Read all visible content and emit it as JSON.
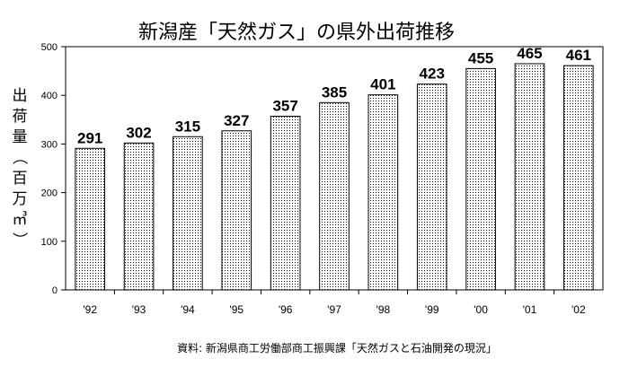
{
  "chart_data": {
    "type": "bar",
    "title": "新潟産「天然ガス」の県外出荷推移",
    "ylabel": "出荷量（百万㎥）",
    "categories": [
      "'92",
      "'93",
      "'94",
      "'95",
      "'96",
      "'97",
      "'98",
      "'99",
      "'00",
      "'01",
      "'02"
    ],
    "values": [
      291,
      302,
      315,
      327,
      357,
      385,
      401,
      423,
      455,
      465,
      461
    ],
    "ylim": [
      0,
      500
    ],
    "yticks": [
      "0",
      "100",
      "200",
      "300",
      "400",
      "500"
    ],
    "grid": false,
    "source": "資料: 新潟県商工労働部商工振興課「天然ガスと石油開発の現況」"
  }
}
